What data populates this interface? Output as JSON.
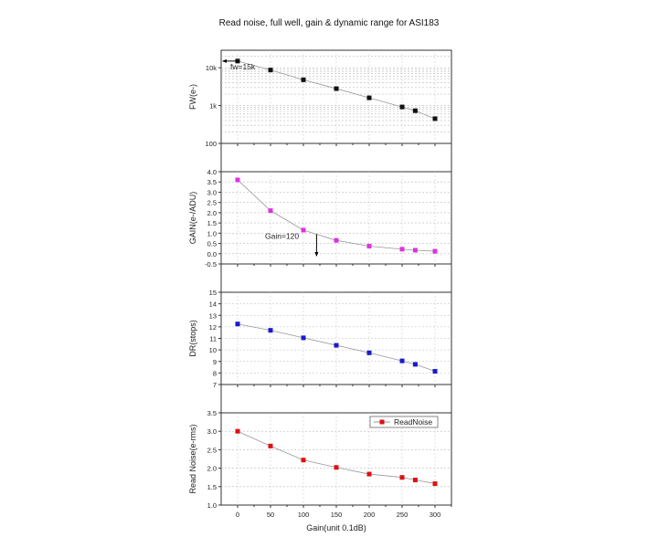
{
  "chart_data": {
    "type": "line",
    "title": "Read noise, full well, gain & dynamic range for ASI183",
    "xlabel": "Gain(unit 0.1dB)",
    "x": [
      0,
      50,
      100,
      150,
      200,
      250,
      270,
      300
    ],
    "xticks": [
      0,
      50,
      100,
      150,
      200,
      250,
      300
    ],
    "xtick_labels": [
      "0",
      "50",
      "100",
      "150",
      "200",
      "250",
      "300"
    ],
    "xlim": [
      -25,
      325
    ],
    "grid": true,
    "panels": [
      {
        "name": "fw",
        "ylabel": "FW(e-)",
        "scale": "log",
        "ylim": [
          100,
          29000
        ],
        "yticks": [
          100,
          1000,
          10000
        ],
        "ytick_labels": [
          "100",
          "1k",
          "10k"
        ],
        "values": [
          15000,
          8700,
          4800,
          2800,
          1600,
          920,
          730,
          450
        ],
        "color": "#111111",
        "annotation": {
          "text": "fw=15k",
          "arrow_to_x": -25,
          "y": 15000
        }
      },
      {
        "name": "gain",
        "ylabel": "GAIN(e-/ADU)",
        "scale": "linear",
        "ylim": [
          -0.5,
          4.0
        ],
        "yticks": [
          -0.5,
          0.0,
          0.5,
          1.0,
          1.5,
          2.0,
          2.5,
          3.0,
          3.5,
          4.0
        ],
        "ytick_labels": [
          "-0.5",
          "0.0",
          "0.5",
          "1.0",
          "1.5",
          "2.0",
          "2.5",
          "3.0",
          "3.5",
          "4.0"
        ],
        "values": [
          3.6,
          2.1,
          1.15,
          0.65,
          0.37,
          0.22,
          0.17,
          0.12
        ],
        "color": "#dd33dd",
        "annotation": {
          "text": "Gain=120",
          "x": 120,
          "y_from": 0.95,
          "y_to": -0.1
        }
      },
      {
        "name": "dr",
        "ylabel": "DR(stops)",
        "scale": "linear",
        "ylim": [
          7,
          15
        ],
        "yticks": [
          7,
          8,
          9,
          10,
          11,
          12,
          13,
          14,
          15
        ],
        "ytick_labels": [
          "7",
          "8",
          "9",
          "10",
          "11",
          "12",
          "13",
          "14",
          "15"
        ],
        "values": [
          12.25,
          11.7,
          11.05,
          10.4,
          9.75,
          9.05,
          8.75,
          8.15
        ],
        "color": "#1a1acc"
      },
      {
        "name": "readnoise",
        "ylabel": "Read Noise(e-rms)",
        "scale": "linear",
        "ylim": [
          1.0,
          3.5
        ],
        "yticks": [
          1.0,
          1.5,
          2.0,
          2.5,
          3.0,
          3.5
        ],
        "ytick_labels": [
          "1.0",
          "1.5",
          "2.0",
          "2.5",
          "3.0",
          "3.5"
        ],
        "values": [
          3.0,
          2.6,
          2.22,
          2.02,
          1.84,
          1.75,
          1.68,
          1.58
        ],
        "color": "#dd1111",
        "legend": {
          "label": "ReadNoise",
          "placement": "top-right"
        }
      }
    ]
  }
}
